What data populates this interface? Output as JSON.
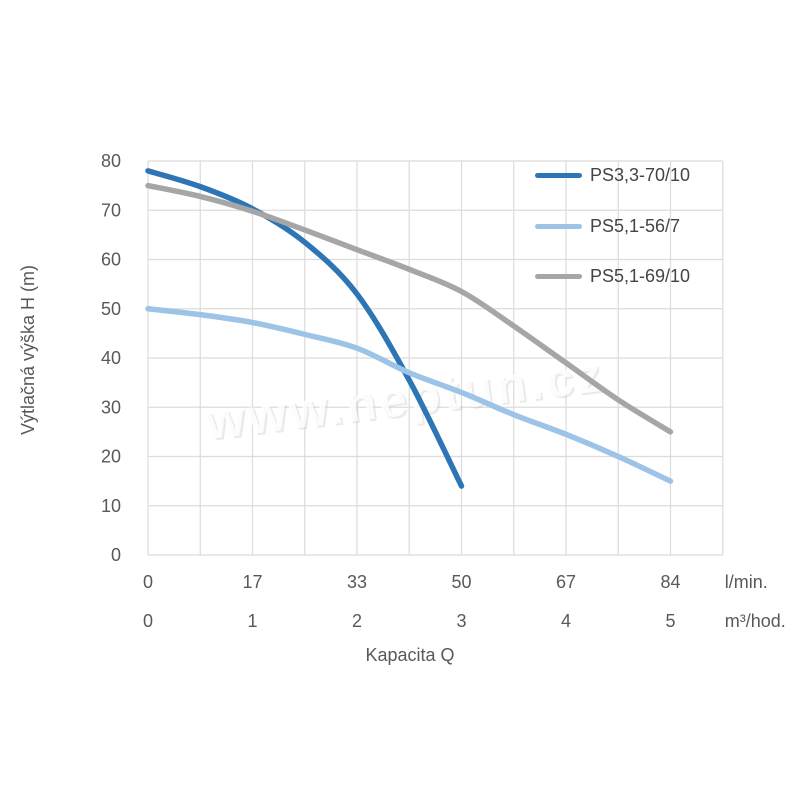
{
  "watermark": "www.neptun.cz",
  "colors": {
    "background": "#FFFFFF",
    "grid": "#DCDCDC",
    "axis_text": "#595959",
    "legend_text": "#444444"
  },
  "chart_data": {
    "type": "line",
    "title": "",
    "ylabel": "Výtlačná výška H (m)",
    "xlabel": "Kapacita Q",
    "ylim": [
      0,
      80
    ],
    "y_ticks": [
      0,
      10,
      20,
      30,
      40,
      50,
      60,
      70,
      80
    ],
    "x_axis_rows": [
      {
        "unit": "l/min.",
        "labels": [
          "0",
          "17",
          "33",
          "50",
          "67",
          "84"
        ]
      },
      {
        "unit": "m³/hod.",
        "labels": [
          "0",
          "1",
          "2",
          "3",
          "4",
          "5"
        ]
      }
    ],
    "x_range_m3hod": [
      0,
      5.5
    ],
    "grid": true,
    "legend_position": "top-right",
    "series": [
      {
        "name": "PS3,3-70/10",
        "color": "#2E75B6",
        "x_m3hod": [
          0,
          0.5,
          1,
          1.5,
          2,
          2.5,
          3
        ],
        "values_m": [
          78,
          74.8,
          70.3,
          63.5,
          53,
          35.5,
          14
        ]
      },
      {
        "name": "PS5,1-56/7",
        "color": "#9DC3E6",
        "x_m3hod": [
          0,
          0.5,
          1,
          1.5,
          2,
          2.5,
          3,
          3.5,
          4,
          4.5,
          5
        ],
        "values_m": [
          50,
          48.8,
          47.2,
          44.8,
          42,
          37,
          33,
          28.5,
          24.5,
          20,
          15
        ]
      },
      {
        "name": "PS5,1-69/10",
        "color": "#A6A6A6",
        "x_m3hod": [
          0,
          0.5,
          1,
          1.5,
          2,
          2.5,
          3,
          3.5,
          4,
          4.5,
          5
        ],
        "values_m": [
          75,
          72.8,
          69.8,
          66,
          62,
          58,
          53.5,
          46.5,
          39,
          31.5,
          25
        ]
      }
    ]
  }
}
